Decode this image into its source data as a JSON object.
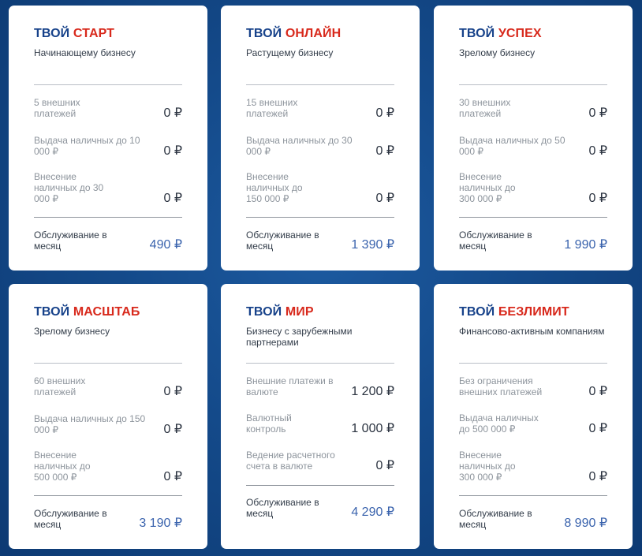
{
  "cards": [
    {
      "title_part1": "ТВОЙ",
      "title_part2": "СТАРТ",
      "subtitle": "Начинающему бизнесу",
      "rows": [
        {
          "label": "5 внешних  платежей",
          "value": "0 ₽"
        },
        {
          "label": "Выдача наличных до 10 000 ₽",
          "value": "0 ₽"
        },
        {
          "label": "Внесение наличных до 30 000 ₽",
          "value": "0 ₽"
        }
      ],
      "fee_label": "Обслуживание в месяц",
      "fee_value": "490 ₽"
    },
    {
      "title_part1": "ТВОЙ",
      "title_part2": "ОНЛАЙН",
      "subtitle": "Растущему бизнесу",
      "rows": [
        {
          "label": "15 внешних  платежей",
          "value": "0 ₽"
        },
        {
          "label": "Выдача наличных до 30 000 ₽",
          "value": "0 ₽"
        },
        {
          "label": "Внесение наличных до 150 000 ₽",
          "value": "0 ₽"
        }
      ],
      "fee_label": "Обслуживание в месяц",
      "fee_value": "1 390 ₽"
    },
    {
      "title_part1": "ТВОЙ",
      "title_part2": "УСПЕХ",
      "subtitle": "Зрелому бизнесу",
      "rows": [
        {
          "label": "30 внешних  платежей",
          "value": "0 ₽"
        },
        {
          "label": "Выдача наличных до 50 000 ₽",
          "value": "0 ₽"
        },
        {
          "label": "Внесение наличных до 300 000 ₽",
          "value": "0 ₽"
        }
      ],
      "fee_label": "Обслуживание в месяц",
      "fee_value": "1 990 ₽"
    },
    {
      "title_part1": "ТВОЙ",
      "title_part2": "МАСШТАБ",
      "subtitle": "Зрелому бизнесу",
      "rows": [
        {
          "label": "60 внешних  платежей",
          "value": "0 ₽"
        },
        {
          "label": "Выдача наличных до 150 000 ₽",
          "value": "0 ₽"
        },
        {
          "label": "Внесение наличных до 500 000 ₽",
          "value": "0 ₽"
        }
      ],
      "fee_label": "Обслуживание в месяц",
      "fee_value": "3 190 ₽"
    },
    {
      "title_part1": "ТВОЙ",
      "title_part2": "МИР",
      "subtitle": "Бизнесу с зарубежными партнерами",
      "rows": [
        {
          "label": "Внешние платежи  в валюте",
          "value": "1 200 ₽"
        },
        {
          "label": "Валютный  контроль",
          "value": "1 000 ₽"
        },
        {
          "label": "Ведение расчетного счета в валюте",
          "value": "0 ₽"
        }
      ],
      "fee_label": "Обслуживание в месяц",
      "fee_value": "4 290 ₽"
    },
    {
      "title_part1": "ТВОЙ",
      "title_part2": "БЕЗЛИМИТ",
      "subtitle": "Финансово-активным компаниям",
      "rows": [
        {
          "label": "Без ограничения внешних платежей",
          "value": "0 ₽"
        },
        {
          "label": "Выдача наличных до 500 000 ₽",
          "value": "0 ₽"
        },
        {
          "label": "Внесение наличных до 300 000 ₽",
          "value": "0 ₽"
        }
      ],
      "fee_label": "Обслуживание в месяц",
      "fee_value": "8 990 ₽"
    }
  ]
}
